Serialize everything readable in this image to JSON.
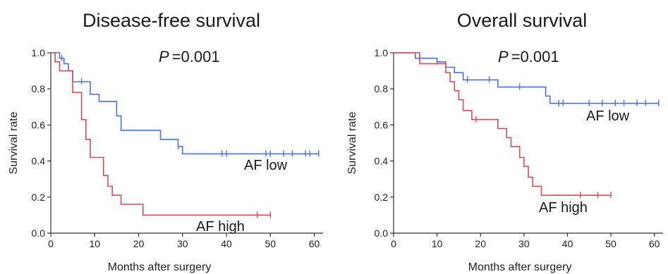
{
  "colors": {
    "low": "#4a72d9",
    "high": "#d94a5c"
  },
  "chart_data": [
    {
      "type": "line",
      "title": "Disease-free survival",
      "annotation": "=0.001",
      "annotation_italic": "P",
      "xlabel": "Months after surgery",
      "ylabel": "Survival rate",
      "xlim": [
        0,
        62
      ],
      "ylim": [
        0,
        1.0
      ],
      "xticks": [
        0,
        10,
        20,
        30,
        40,
        50,
        60
      ],
      "yticks": [
        0.0,
        0.2,
        0.4,
        0.6,
        0.8,
        1.0
      ],
      "xtick_labels": [
        "0",
        "10",
        "20",
        "30",
        "40",
        "50",
        "60"
      ],
      "ytick_labels": [
        "0.0",
        "0.2",
        "0.4",
        "0.6",
        "0.8",
        "1.0"
      ],
      "series": [
        {
          "name": "AF low",
          "color_key": "low",
          "steps": [
            [
              0,
              1.0
            ],
            [
              2,
              0.97
            ],
            [
              3,
              0.94
            ],
            [
              4,
              0.9
            ],
            [
              5,
              0.84
            ],
            [
              9,
              0.77
            ],
            [
              11,
              0.73
            ],
            [
              15,
              0.65
            ],
            [
              16,
              0.57
            ],
            [
              25,
              0.52
            ],
            [
              29,
              0.48
            ],
            [
              30,
              0.44
            ],
            [
              61,
              0.44
            ]
          ],
          "censors": [
            [
              2.5,
              0.97
            ],
            [
              7,
              0.84
            ],
            [
              29,
              0.48
            ],
            [
              39,
              0.44
            ],
            [
              40,
              0.44
            ],
            [
              49,
              0.44
            ],
            [
              50,
              0.44
            ],
            [
              53,
              0.44
            ],
            [
              55,
              0.44
            ],
            [
              58,
              0.44
            ],
            [
              59,
              0.44
            ],
            [
              61,
              0.44
            ]
          ]
        },
        {
          "name": "AF high",
          "color_key": "high",
          "steps": [
            [
              0,
              1.0
            ],
            [
              1,
              0.95
            ],
            [
              2,
              0.9
            ],
            [
              5,
              0.78
            ],
            [
              7,
              0.63
            ],
            [
              8,
              0.52
            ],
            [
              9,
              0.42
            ],
            [
              12,
              0.32
            ],
            [
              13,
              0.26
            ],
            [
              14,
              0.21
            ],
            [
              16,
              0.16
            ],
            [
              21,
              0.1
            ],
            [
              50,
              0.1
            ]
          ],
          "censors": [
            [
              47,
              0.1
            ],
            [
              50,
              0.1
            ]
          ]
        }
      ]
    },
    {
      "type": "line",
      "title": "Overall survival",
      "annotation": "=0.001",
      "annotation_italic": "P",
      "xlabel": "Months after surgery",
      "ylabel": "Survival rate",
      "xlim": [
        0,
        62
      ],
      "ylim": [
        0,
        1.0
      ],
      "xticks": [
        0,
        10,
        20,
        30,
        40,
        50,
        60
      ],
      "yticks": [
        0.0,
        0.2,
        0.4,
        0.6,
        0.8,
        1.0
      ],
      "xtick_labels": [
        "0",
        "10",
        "20",
        "30",
        "40",
        "50",
        "60"
      ],
      "ytick_labels": [
        "0.0",
        "0.2",
        "0.4",
        "0.6",
        "0.8",
        "1.0"
      ],
      "series": [
        {
          "name": "AF low",
          "color_key": "low",
          "steps": [
            [
              0,
              1.0
            ],
            [
              5,
              0.97
            ],
            [
              10,
              0.95
            ],
            [
              12,
              0.92
            ],
            [
              14,
              0.89
            ],
            [
              16,
              0.85
            ],
            [
              24,
              0.81
            ],
            [
              35,
              0.76
            ],
            [
              36,
              0.72
            ],
            [
              61,
              0.72
            ]
          ],
          "censors": [
            [
              6,
              0.97
            ],
            [
              10,
              0.95
            ],
            [
              17,
              0.85
            ],
            [
              22,
              0.85
            ],
            [
              29,
              0.81
            ],
            [
              38,
              0.72
            ],
            [
              39,
              0.72
            ],
            [
              45,
              0.72
            ],
            [
              48,
              0.72
            ],
            [
              51,
              0.72
            ],
            [
              53,
              0.72
            ],
            [
              56,
              0.72
            ],
            [
              58,
              0.72
            ],
            [
              61,
              0.72
            ]
          ]
        },
        {
          "name": "AF high",
          "color_key": "high",
          "steps": [
            [
              0,
              1.0
            ],
            [
              6,
              0.94
            ],
            [
              12,
              0.89
            ],
            [
              13,
              0.84
            ],
            [
              14,
              0.79
            ],
            [
              15,
              0.74
            ],
            [
              16,
              0.68
            ],
            [
              18,
              0.63
            ],
            [
              24,
              0.58
            ],
            [
              26,
              0.53
            ],
            [
              27,
              0.48
            ],
            [
              29,
              0.42
            ],
            [
              30,
              0.37
            ],
            [
              31,
              0.31
            ],
            [
              32,
              0.26
            ],
            [
              34,
              0.21
            ],
            [
              50,
              0.21
            ]
          ],
          "censors": [
            [
              19,
              0.63
            ],
            [
              43,
              0.21
            ],
            [
              47,
              0.21
            ],
            [
              50,
              0.21
            ]
          ]
        }
      ]
    }
  ]
}
